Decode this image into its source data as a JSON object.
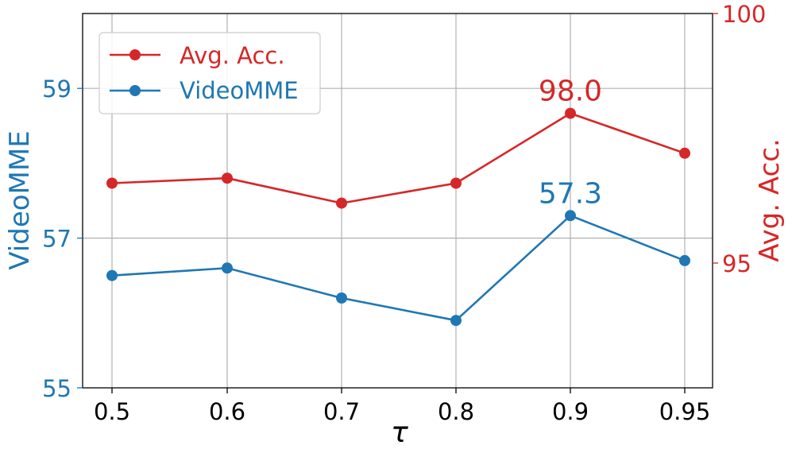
{
  "chart_data": {
    "type": "line",
    "title": "",
    "xlabel": "τ",
    "ylabel_left": "VideoMME",
    "ylabel_right": "Avg. Acc.",
    "categories": [
      "0.5",
      "0.6",
      "0.7",
      "0.8",
      "0.9",
      "0.95"
    ],
    "ylim_left": [
      55,
      60
    ],
    "ylim_right": [
      92.5,
      100
    ],
    "yticks_left": [
      55,
      57,
      59
    ],
    "yticks_right": [
      95,
      100
    ],
    "grid": true,
    "legend_position": "top-left",
    "series": [
      {
        "name": "Avg. Acc.",
        "axis": "right",
        "color": "#d62728",
        "values": [
          96.6,
          96.7,
          96.2,
          96.6,
          98.0,
          97.2
        ],
        "annotation": {
          "index": 4,
          "text": "98.0"
        }
      },
      {
        "name": "VideoMME",
        "axis": "left",
        "color": "#1f77b4",
        "values": [
          56.5,
          56.6,
          56.2,
          55.9,
          57.3,
          56.7
        ],
        "annotation": {
          "index": 4,
          "text": "57.3"
        }
      }
    ]
  }
}
